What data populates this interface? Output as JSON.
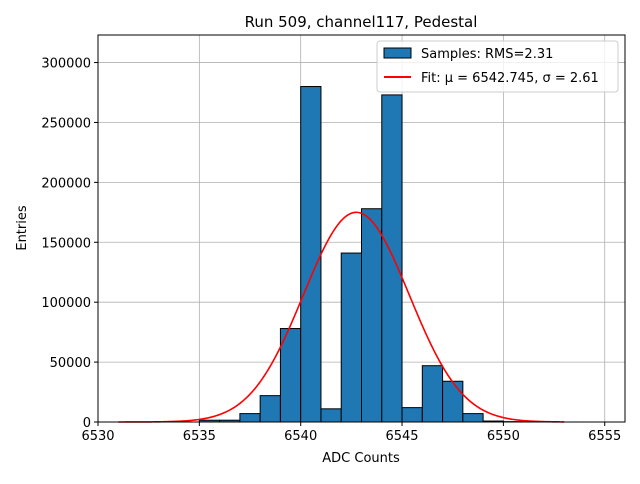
{
  "chart_data": {
    "type": "bar",
    "title": "Run 509, channel117, Pedestal",
    "xlabel": "ADC Counts",
    "ylabel": "Entries",
    "xlim": [
      6530,
      6556
    ],
    "ylim": [
      0,
      323000
    ],
    "grid": true,
    "legend_position": "top-right",
    "colors": {
      "bars": "#1f77b4",
      "bar_edge": "#000000",
      "fit": "#ff0000",
      "grid": "#b0b0b0"
    },
    "x_ticks": [
      6530,
      6535,
      6540,
      6545,
      6550,
      6555
    ],
    "y_ticks": [
      0,
      50000,
      100000,
      150000,
      200000,
      250000,
      300000
    ],
    "bin_width": 1,
    "series": [
      {
        "name": "Samples: RMS=2.31",
        "kind": "histogram",
        "bin_starts": [
          6535,
          6536,
          6537,
          6538,
          6539,
          6540,
          6541,
          6542,
          6543,
          6544,
          6545,
          6546,
          6547,
          6548,
          6549,
          6550,
          6551
        ],
        "values": [
          1500,
          1500,
          7000,
          22000,
          78000,
          280000,
          11000,
          141000,
          178000,
          273000,
          12000,
          47000,
          34000,
          7000,
          800,
          300,
          100
        ]
      },
      {
        "name": "Fit: μ = 6542.745, σ = 2.61",
        "kind": "gaussian-fit",
        "mu": 6542.745,
        "sigma": 2.61,
        "amplitude": 175000,
        "x_range": [
          6531,
          6553
        ]
      }
    ]
  }
}
